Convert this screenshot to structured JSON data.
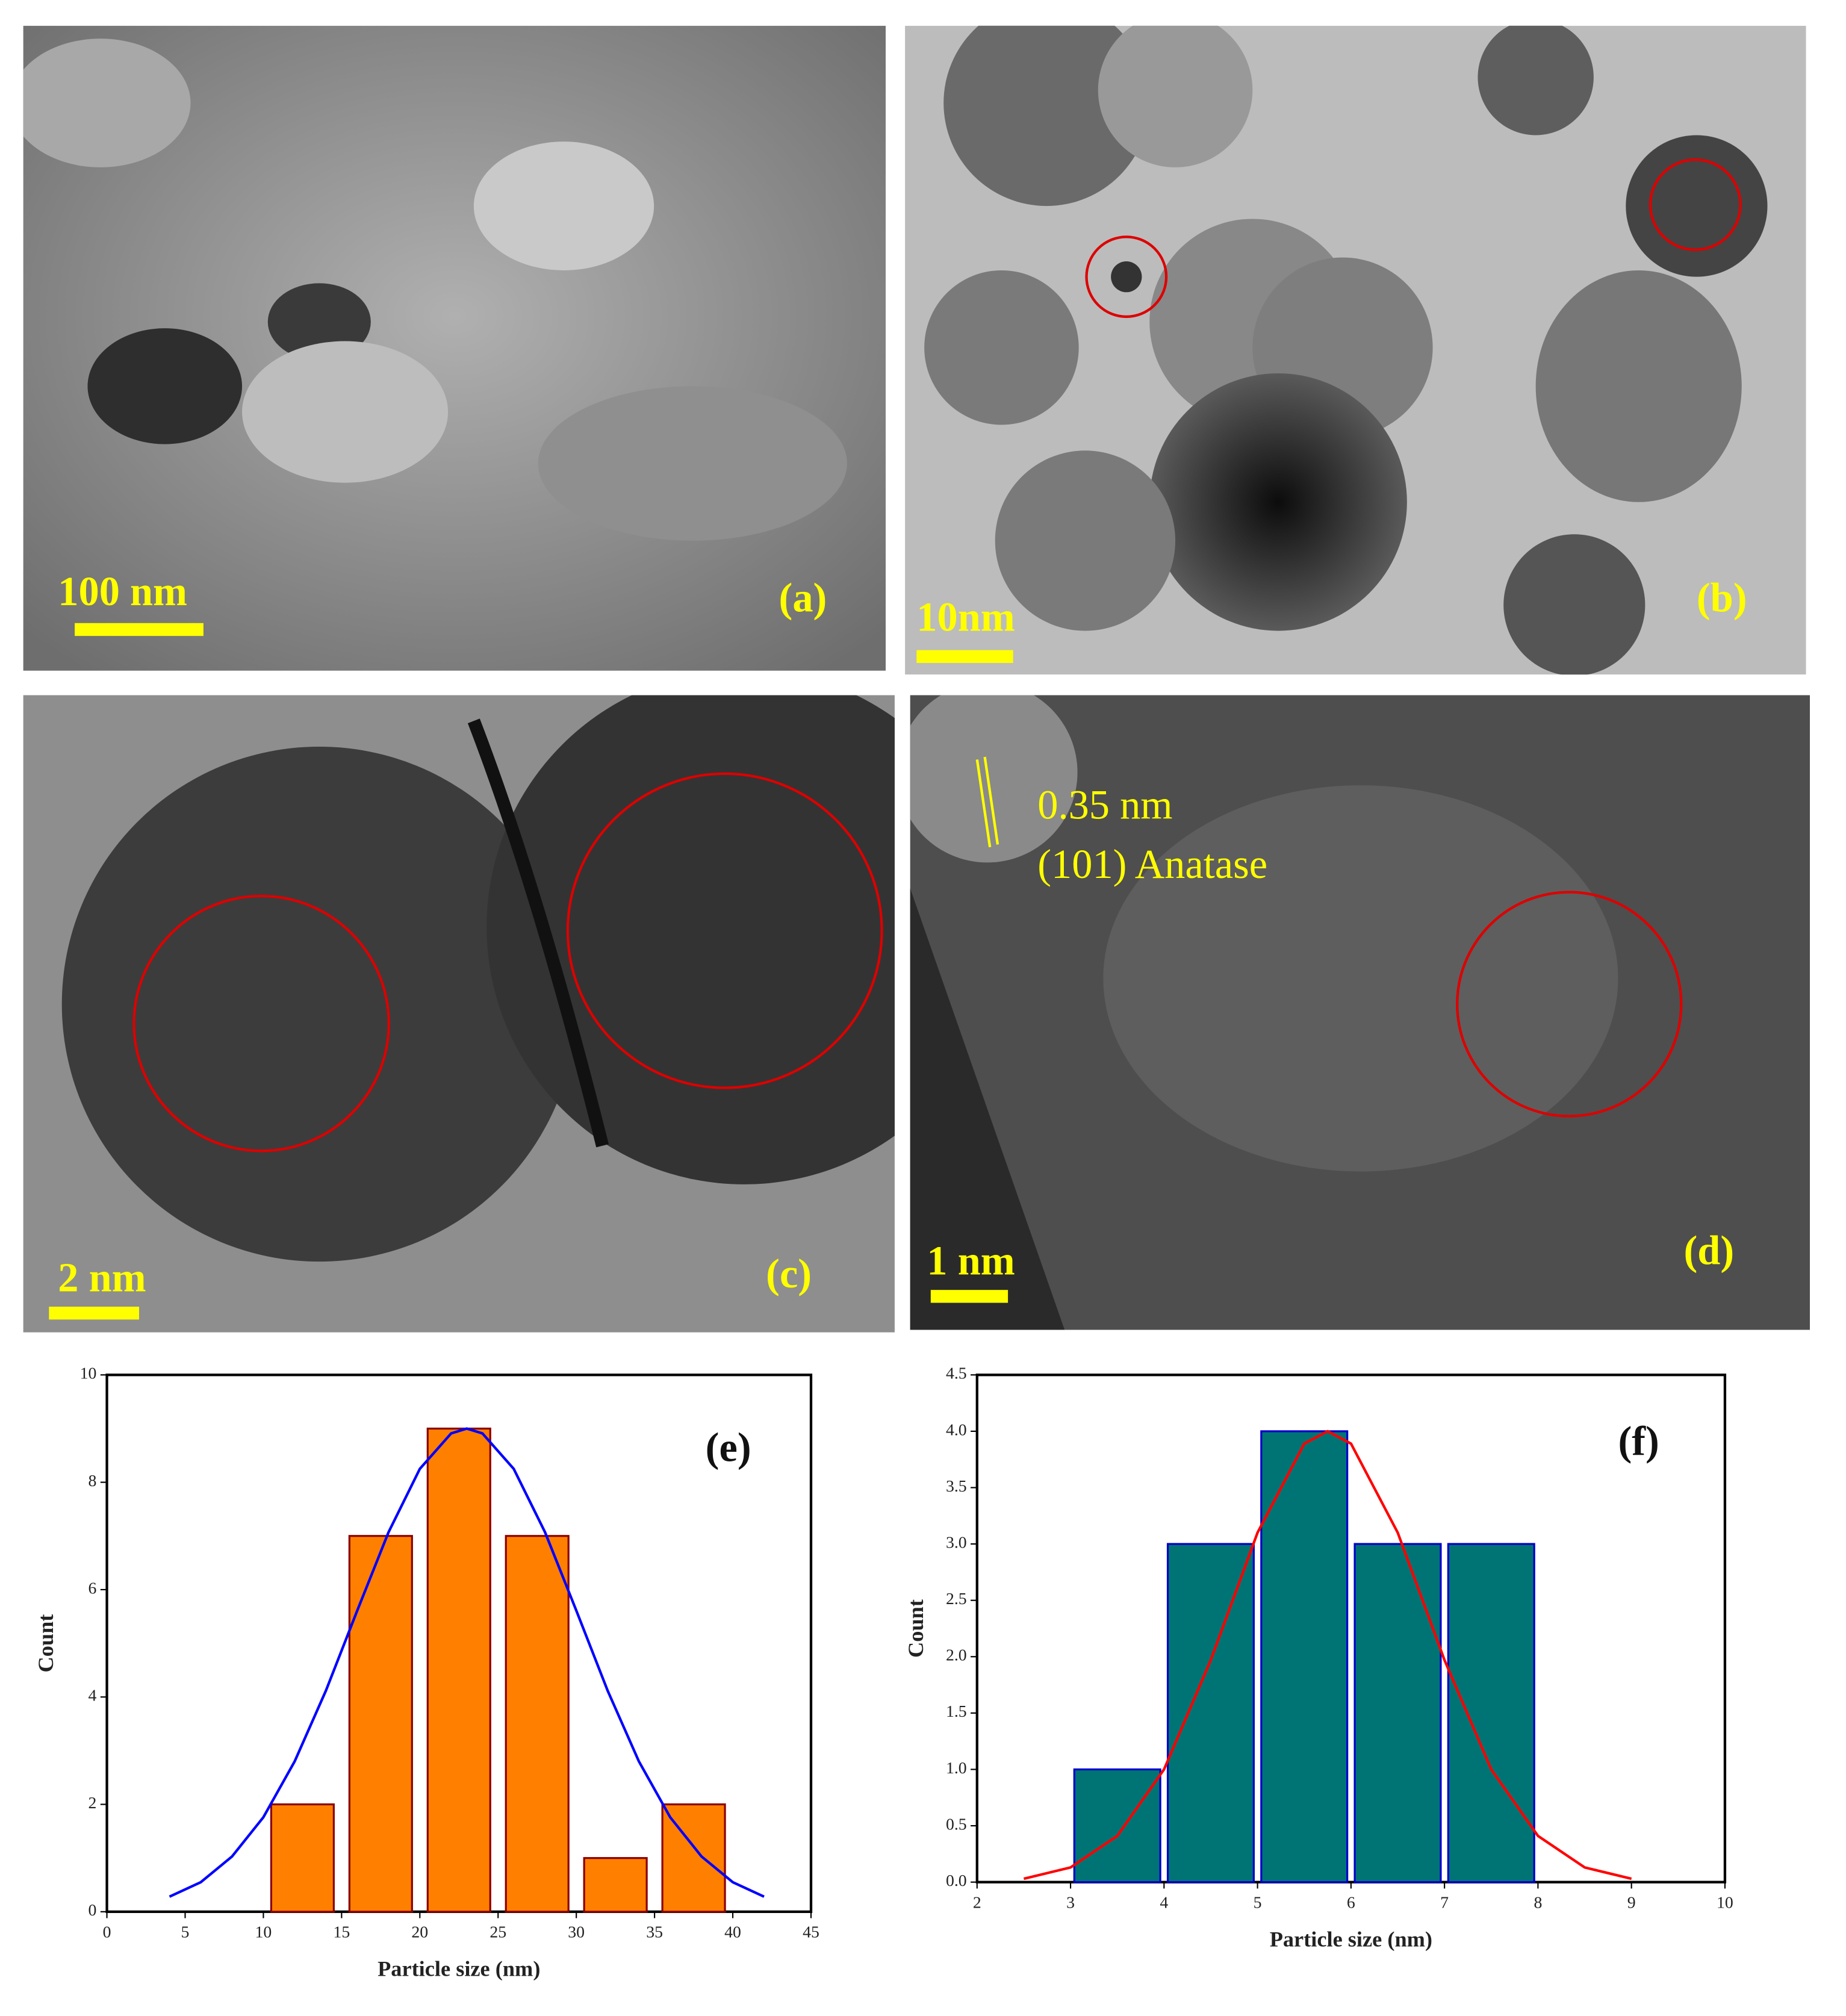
{
  "panels": [
    {
      "label": "(a)",
      "scale_bar": "100 nm"
    },
    {
      "label": "(b)",
      "scale_bar": "10nm"
    },
    {
      "label": "(c)",
      "scale_bar": "2 nm"
    },
    {
      "label": "(d)",
      "scale_bar": "1 nm",
      "annotations": [
        "0.35 nm",
        "(101) Anatase"
      ]
    }
  ],
  "chart_data": [
    {
      "type": "histogram",
      "label": "(e)",
      "x_label": "Particle size (nm)",
      "y_label": "Count",
      "bins": [
        10,
        15,
        20,
        25,
        30,
        35,
        40
      ],
      "counts": [
        2,
        7,
        9,
        7,
        1,
        2
      ],
      "color": "#ff7f00",
      "edge_color": "#8b0000",
      "fit": {
        "color": "#0000ff",
        "x": [
          4,
          6,
          8,
          10,
          12,
          14,
          16,
          18,
          20,
          22,
          23,
          24,
          26,
          28,
          30,
          32,
          34,
          36,
          38,
          40,
          42
        ],
        "y": [
          0.28,
          0.55,
          1.03,
          1.76,
          2.8,
          4.12,
          5.61,
          7.07,
          8.25,
          8.91,
          9,
          8.91,
          8.25,
          7.07,
          5.61,
          4.12,
          2.8,
          1.76,
          1.03,
          0.55,
          0.28
        ]
      },
      "xlim": [
        0,
        45
      ],
      "xticks": [
        0,
        5,
        10,
        15,
        20,
        25,
        30,
        35,
        40,
        45
      ],
      "ylim": [
        0,
        10
      ],
      "yticks": [
        0,
        2,
        4,
        6,
        8,
        10
      ]
    },
    {
      "type": "histogram",
      "label": "(f)",
      "x_label": "Particle size (nm)",
      "y_label": "Count",
      "bins": [
        3,
        4,
        5,
        6,
        7,
        8
      ],
      "counts": [
        1,
        3,
        4,
        3,
        3
      ],
      "color": "#007474",
      "edge_color": "#0000cc",
      "fit": {
        "color": "#ff0000",
        "x": [
          2.5,
          3,
          3.5,
          4,
          4.5,
          5,
          5.5,
          5.75,
          6,
          6.5,
          7,
          7.5,
          8,
          8.5,
          9
        ],
        "y": [
          0.03,
          0.13,
          0.41,
          1.0,
          1.97,
          3.1,
          3.89,
          4,
          3.89,
          3.1,
          1.97,
          1.0,
          0.41,
          0.13,
          0.03
        ]
      },
      "xlim": [
        2,
        10
      ],
      "xticks": [
        2,
        3,
        4,
        5,
        6,
        7,
        8,
        9,
        10
      ],
      "ylim": [
        0,
        4.5
      ],
      "yticks": [
        {
          "value": 0,
          "label": "0.0"
        },
        0.5,
        {
          "value": 1,
          "label": "1.0"
        },
        1.5,
        {
          "value": 2,
          "label": "2.0"
        },
        2.5,
        {
          "value": 3,
          "label": "3.0"
        },
        3.5,
        {
          "value": 4,
          "label": "4.0"
        },
        4.5
      ]
    }
  ]
}
